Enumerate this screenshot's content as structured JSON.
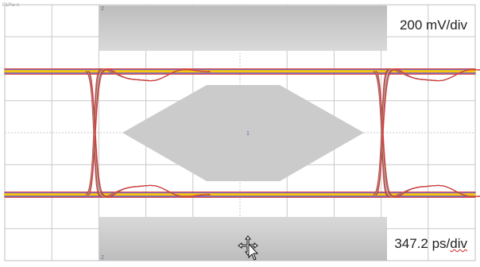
{
  "scope": {
    "vertical_scale": "200 mV/div",
    "horizontal_scale_value": "347.2 ps/",
    "horizontal_scale_unit": "div",
    "top_mask_marker": "2",
    "bottom_mask_marker": "2",
    "center_marker": "1",
    "top_left_label": "P1Pw-n",
    "colors": {
      "grid": "#c8c8c8",
      "mask": "#cfcfcf",
      "mask_dark": "#b0b0b0",
      "trace_core": "#f4c400",
      "trace_edge": "#e03a2a",
      "trace_accent": "#6b4bb8"
    },
    "cursor_icon": "move-cursor-icon"
  }
}
